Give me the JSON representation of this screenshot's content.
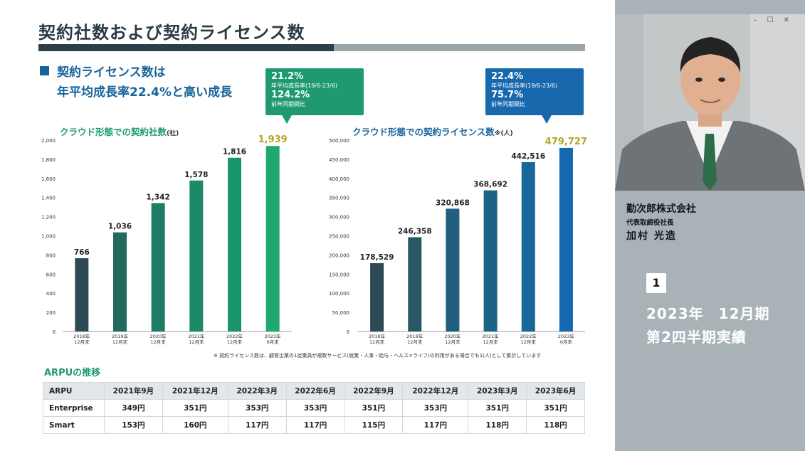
{
  "slide": {
    "title": "契約社数および契約ライセンス数",
    "headline_line1": "契約ライセンス数は",
    "headline_line2": "年平均成長率22.4%と高い成長",
    "callout_companies": {
      "cagr": "21.2%",
      "cagr_label": "年平均成長率(19/6-23/6)",
      "yoy": "124.2%",
      "yoy_label": "前年同期間比"
    },
    "callout_licenses": {
      "cagr": "22.4%",
      "cagr_label": "年平均成長率(19/6-23/6)",
      "yoy": "75.7%",
      "yoy_label": "前年同期間比"
    },
    "chart_title_companies": "クラウド形態での契約社数",
    "chart_unit_companies": "(社)",
    "chart_title_licenses": "クラウド形態での契約ライセンス数",
    "chart_unit_licenses": "※(人)",
    "footnote": "※ 契約ライセンス数は、顧客企業の1従業員が複数サービス(就業・人事・給与・ヘルス×ライフ)の利用がある場合でも1(人)として集計しています",
    "arpu_title": "ARPUの推移",
    "arpu_table": {
      "headers": [
        "ARPU",
        "2021年9月",
        "2021年12月",
        "2022年3月",
        "2022年6月",
        "2022年9月",
        "2022年12月",
        "2023年3月",
        "2023年6月"
      ],
      "rows": [
        [
          "Enterprise",
          "349円",
          "351円",
          "353円",
          "353円",
          "351円",
          "353円",
          "351円",
          "351円"
        ],
        [
          "Smart",
          "153円",
          "160円",
          "117円",
          "117円",
          "115円",
          "117円",
          "118円",
          "118円"
        ]
      ]
    }
  },
  "chart_data": [
    {
      "type": "bar",
      "title": "クラウド形態での契約社数",
      "ylabel": "(社)",
      "categories": [
        [
          "2018年",
          "12月末"
        ],
        [
          "2019年",
          "12月末"
        ],
        [
          "2020年",
          "12月末"
        ],
        [
          "2021年",
          "12月末"
        ],
        [
          "2022年",
          "12月末"
        ],
        [
          "2023年",
          "6月末"
        ]
      ],
      "values": [
        766,
        1036,
        1342,
        1578,
        1816,
        1939
      ],
      "value_labels": [
        "766",
        "1,036",
        "1,342",
        "1,578",
        "1,816",
        "1,939"
      ],
      "ylim": [
        0,
        2000
      ],
      "yticks": [
        0,
        200,
        400,
        600,
        800,
        1000,
        1200,
        1400,
        1600,
        1800,
        2000
      ],
      "ytick_labels": [
        "0",
        "200",
        "400",
        "600",
        "800",
        "1,000",
        "1,200",
        "1,400",
        "1,600",
        "1,800",
        "2,000"
      ],
      "colors": [
        "#2e4a54",
        "#226a5e",
        "#1e7d64",
        "#1b8a69",
        "#1a946c",
        "#1fa872"
      ],
      "highlight_label_color": "#b5a524",
      "grid": false
    },
    {
      "type": "bar",
      "title": "クラウド形態での契約ライセンス数",
      "ylabel": "(人)",
      "categories": [
        [
          "2018年",
          "12月末"
        ],
        [
          "2019年",
          "12月末"
        ],
        [
          "2020年",
          "12月末"
        ],
        [
          "2021年",
          "12月末"
        ],
        [
          "2022年",
          "12月末"
        ],
        [
          "2023年",
          "6月末"
        ]
      ],
      "values": [
        178529,
        246358,
        320868,
        368692,
        442516,
        479727
      ],
      "value_labels": [
        "178,529",
        "246,358",
        "320,868",
        "368,692",
        "442,516",
        "479,727"
      ],
      "ylim": [
        0,
        500000
      ],
      "yticks": [
        0,
        50000,
        100000,
        150000,
        200000,
        250000,
        300000,
        350000,
        400000,
        450000,
        500000
      ],
      "ytick_labels": [
        "0",
        "50,000",
        "100,000",
        "150,000",
        "200,000",
        "250,000",
        "300,000",
        "350,000",
        "400,000",
        "450,000",
        "500,000"
      ],
      "colors": [
        "#2e4a54",
        "#285866",
        "#225f7c",
        "#1c6388",
        "#18669a",
        "#1468b0"
      ],
      "highlight_label_color": "#b5a524",
      "grid": false
    }
  ],
  "side_panel": {
    "window_controls": [
      "–",
      "☐",
      "✕"
    ],
    "company": "勤次郎株式会社",
    "role": "代表取締役社長",
    "person": "加村 光造",
    "badge": "1",
    "period_line1": "2023年　12月期",
    "period_line2": "第2四半期実績"
  }
}
